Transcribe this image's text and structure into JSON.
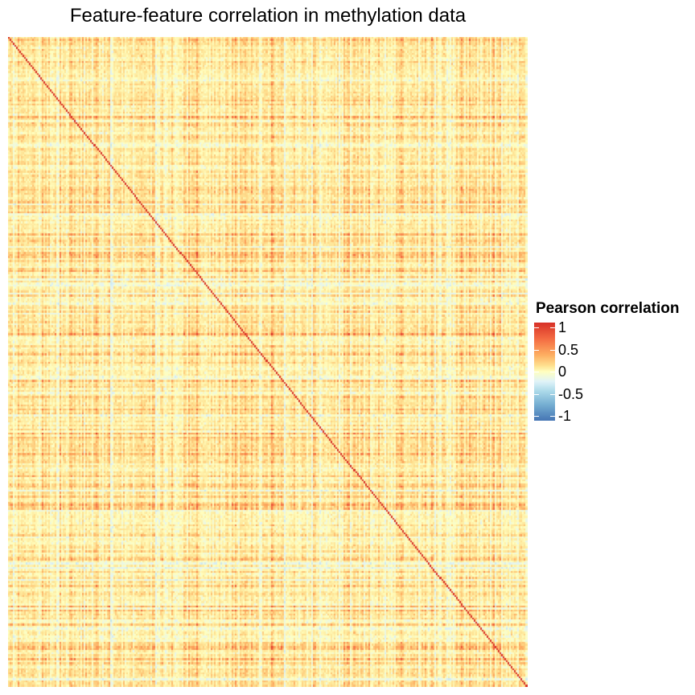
{
  "chart_data": {
    "type": "heatmap",
    "title": "Feature-feature correlation in methylation data",
    "xlabel": "",
    "ylabel": "",
    "value_range": [
      -1,
      1
    ],
    "diagonal_value": 1,
    "colorscale": [
      "#4575b4",
      "#74add1",
      "#abd9e9",
      "#e0f3f8",
      "#ffffbf",
      "#fee090",
      "#fdae61",
      "#f46d43",
      "#d73027"
    ],
    "legend": {
      "title": "Pearson correlation",
      "placement": "right",
      "ticks": [
        {
          "value": 1,
          "label": "1"
        },
        {
          "value": 0.5,
          "label": "0.5"
        },
        {
          "value": 0,
          "label": "0"
        },
        {
          "value": -0.5,
          "label": "-0.5"
        },
        {
          "value": -1,
          "label": "-1"
        }
      ]
    }
  }
}
